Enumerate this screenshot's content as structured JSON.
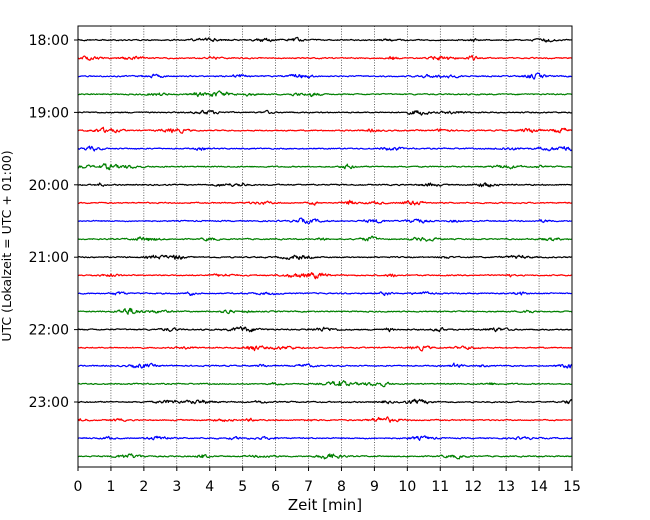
{
  "chart_data": {
    "type": "line",
    "xlabel": "Zeit  [min]",
    "ylabel": "UTC (Lokalzeit = UTC + 01:00)",
    "xlim": [
      0,
      15
    ],
    "x_ticks": [
      0,
      1,
      2,
      3,
      4,
      5,
      6,
      7,
      8,
      9,
      10,
      11,
      12,
      13,
      14,
      15
    ],
    "y_tick_labels": [
      "18:00",
      "19:00",
      "20:00",
      "21:00",
      "22:00",
      "23:00"
    ],
    "trace_interval_minutes": 15,
    "trace_count": 24,
    "trace_colors": [
      "#000000",
      "#ff0000",
      "#0000ff",
      "#008000"
    ],
    "vertical_grid": true,
    "grid_style": "dotted",
    "legend": false
  }
}
